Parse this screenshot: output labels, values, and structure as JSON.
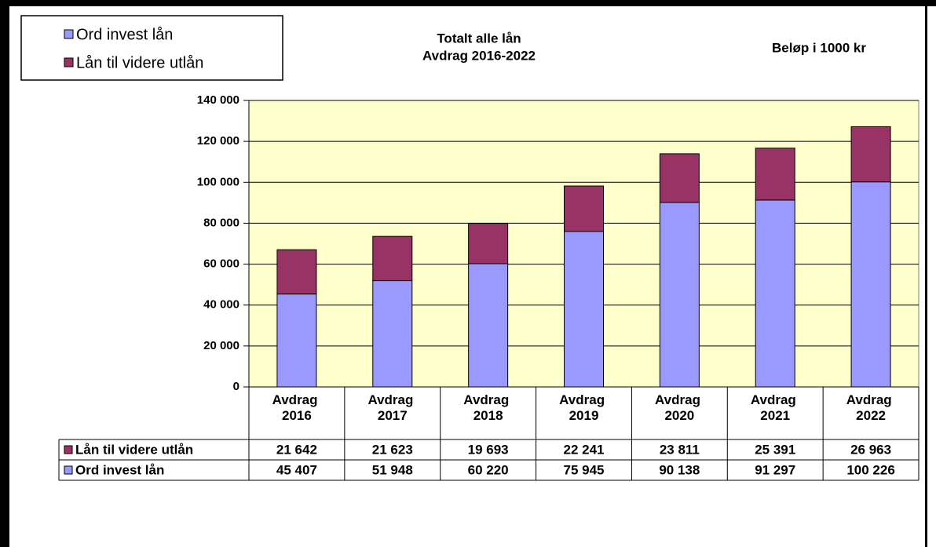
{
  "chart_data": {
    "type": "stacked_bar",
    "title": "Totalt alle lån",
    "subtitle": "Avdrag 2016-2022",
    "annotation": "Beløp i 1000 kr",
    "categories": [
      "Avdrag 2016",
      "Avdrag 2017",
      "Avdrag 2018",
      "Avdrag 2019",
      "Avdrag 2020",
      "Avdrag 2021",
      "Avdrag 2022"
    ],
    "series": [
      {
        "name": "Ord invest lån",
        "color": "#9999ff",
        "values": [
          45407,
          51948,
          60220,
          75945,
          90138,
          91297,
          100226
        ],
        "value_labels": [
          "45 407",
          "51 948",
          "60 220",
          "75 945",
          "90 138",
          "91 297",
          "100 226"
        ]
      },
      {
        "name": "Lån til videre utlån",
        "color": "#993366",
        "values": [
          21642,
          21623,
          19693,
          22241,
          23811,
          25391,
          26963
        ],
        "value_labels": [
          "21 642",
          "21 623",
          "19 693",
          "22 241",
          "23 811",
          "25 391",
          "26 963"
        ]
      }
    ],
    "ylim": [
      0,
      140000
    ],
    "yticks": [
      0,
      {
        "value": 20000,
        "label": "20 000"
      },
      {
        "value": 40000,
        "label": "40 000"
      },
      {
        "value": 60000,
        "label": "60 000"
      },
      {
        "value": 80000,
        "label": "80 000"
      },
      {
        "value": 100000,
        "label": "100 000"
      },
      {
        "value": 120000,
        "label": "120 000"
      },
      {
        "value": 140000,
        "label": "140 000"
      }
    ],
    "grid": true,
    "plot_background": "#ffffcc",
    "legend": "top-left"
  }
}
